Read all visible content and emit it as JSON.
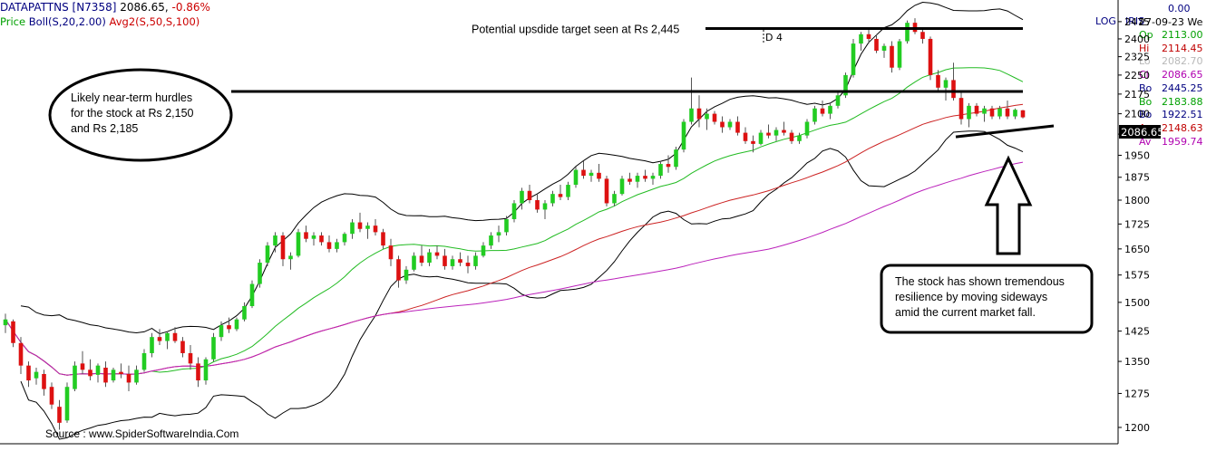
{
  "header": {
    "symbol": "DATAPATTNS [N7358]",
    "last": "2086.65,",
    "change": "-0.86%",
    "legend_price": "Price",
    "legend_boll": "Boll(S,20,2.00)",
    "legend_avg": "Avg2(S,50,S,100)",
    "log_label": "LOG",
    "iris_label": "IRIS"
  },
  "side_panel": {
    "top_value": "0.00",
    "date": "27-09-23 We",
    "rows": [
      {
        "key": "Op",
        "value": "2113.00",
        "color": "#00a000"
      },
      {
        "key": "Hi",
        "value": "2114.45",
        "color": "#c00000"
      },
      {
        "key": "Lo",
        "value": "2082.70",
        "color": "#b8b8b8"
      },
      {
        "key": "Cl",
        "value": "2086.65",
        "color": "#b000b0"
      },
      {
        "key": "Bo",
        "value": "2445.25",
        "color": "#000080"
      },
      {
        "key": "Bo",
        "value": "2183.88",
        "color": "#00a000"
      },
      {
        "key": "Bo",
        "value": "1922.51",
        "color": "#000080"
      },
      {
        "key": "Av",
        "value": "2148.63",
        "color": "#c00000"
      },
      {
        "key": "Av",
        "value": "1959.74",
        "color": "#b000b0"
      }
    ]
  },
  "price_tag": "2086.65",
  "source": "Source : www.SpiderSoftwareIndia.Com",
  "annotations": {
    "hurdle_lines": [
      "Likely near-term hurdles",
      "for the stock at Rs 2,150",
      "and Rs 2,185"
    ],
    "target_text": "Potential upsdide target seen at Rs 2,445",
    "resilience_lines": [
      "The stock has shown tremendous",
      "resilience by moving sideways",
      "amid the current market fall."
    ],
    "marker": "D 4"
  },
  "colors": {
    "up": "#22cc22",
    "down": "#dd1111",
    "bb_mid": "#22bb22",
    "avg50": "#cc2222",
    "avg100": "#bb22bb",
    "bb_band": "#000000"
  },
  "chart_data": {
    "type": "candlestick",
    "y_scale": "log",
    "ylim": [
      1175,
      2560
    ],
    "yticks": [
      1200,
      1275,
      1350,
      1425,
      1500,
      1575,
      1650,
      1725,
      1800,
      1875,
      1950,
      2025,
      2100,
      2175,
      2250,
      2325,
      2400,
      2475
    ],
    "reference_lines": [
      {
        "label": "hurdle",
        "value": 2185
      },
      {
        "label": "target",
        "value": 2445
      }
    ],
    "support_trendline": [
      2015,
      2055
    ],
    "candles": [
      [
        1440,
        1470,
        1420,
        1455
      ],
      [
        1450,
        1455,
        1385,
        1395
      ],
      [
        1395,
        1410,
        1320,
        1340
      ],
      [
        1340,
        1350,
        1290,
        1305
      ],
      [
        1310,
        1335,
        1295,
        1325
      ],
      [
        1320,
        1330,
        1270,
        1285
      ],
      [
        1290,
        1300,
        1240,
        1250
      ],
      [
        1245,
        1260,
        1195,
        1210
      ],
      [
        1215,
        1300,
        1210,
        1290
      ],
      [
        1285,
        1350,
        1280,
        1340
      ],
      [
        1345,
        1375,
        1320,
        1330
      ],
      [
        1330,
        1355,
        1305,
        1315
      ],
      [
        1318,
        1345,
        1300,
        1340
      ],
      [
        1335,
        1350,
        1290,
        1300
      ],
      [
        1305,
        1335,
        1300,
        1330
      ],
      [
        1325,
        1345,
        1310,
        1320
      ],
      [
        1320,
        1340,
        1280,
        1300
      ],
      [
        1300,
        1340,
        1295,
        1330
      ],
      [
        1330,
        1380,
        1325,
        1370
      ],
      [
        1370,
        1420,
        1360,
        1410
      ],
      [
        1410,
        1430,
        1390,
        1400
      ],
      [
        1400,
        1425,
        1380,
        1420
      ],
      [
        1420,
        1435,
        1395,
        1400
      ],
      [
        1400,
        1410,
        1360,
        1370
      ],
      [
        1370,
        1390,
        1330,
        1345
      ],
      [
        1345,
        1360,
        1290,
        1305
      ],
      [
        1305,
        1360,
        1295,
        1355
      ],
      [
        1355,
        1420,
        1350,
        1410
      ],
      [
        1410,
        1450,
        1400,
        1440
      ],
      [
        1440,
        1460,
        1420,
        1430
      ],
      [
        1430,
        1460,
        1425,
        1455
      ],
      [
        1455,
        1500,
        1450,
        1490
      ],
      [
        1490,
        1560,
        1485,
        1550
      ],
      [
        1550,
        1620,
        1540,
        1610
      ],
      [
        1610,
        1670,
        1600,
        1660
      ],
      [
        1660,
        1700,
        1640,
        1690
      ],
      [
        1690,
        1700,
        1600,
        1620
      ],
      [
        1620,
        1640,
        1590,
        1630
      ],
      [
        1630,
        1710,
        1625,
        1700
      ],
      [
        1700,
        1720,
        1670,
        1680
      ],
      [
        1680,
        1700,
        1660,
        1690
      ],
      [
        1690,
        1700,
        1660,
        1670
      ],
      [
        1670,
        1690,
        1640,
        1650
      ],
      [
        1650,
        1680,
        1640,
        1670
      ],
      [
        1670,
        1700,
        1660,
        1695
      ],
      [
        1695,
        1740,
        1680,
        1730
      ],
      [
        1730,
        1760,
        1700,
        1710
      ],
      [
        1710,
        1730,
        1680,
        1720
      ],
      [
        1720,
        1740,
        1690,
        1700
      ],
      [
        1700,
        1710,
        1650,
        1660
      ],
      [
        1660,
        1680,
        1600,
        1620
      ],
      [
        1620,
        1630,
        1540,
        1560
      ],
      [
        1560,
        1600,
        1550,
        1590
      ],
      [
        1590,
        1640,
        1585,
        1630
      ],
      [
        1630,
        1660,
        1600,
        1610
      ],
      [
        1610,
        1650,
        1600,
        1640
      ],
      [
        1640,
        1660,
        1620,
        1630
      ],
      [
        1630,
        1650,
        1590,
        1600
      ],
      [
        1600,
        1630,
        1590,
        1620
      ],
      [
        1620,
        1640,
        1600,
        1610
      ],
      [
        1610,
        1630,
        1580,
        1600
      ],
      [
        1600,
        1640,
        1590,
        1630
      ],
      [
        1630,
        1670,
        1625,
        1660
      ],
      [
        1660,
        1700,
        1650,
        1690
      ],
      [
        1690,
        1720,
        1670,
        1700
      ],
      [
        1700,
        1750,
        1690,
        1740
      ],
      [
        1740,
        1800,
        1730,
        1790
      ],
      [
        1790,
        1840,
        1770,
        1830
      ],
      [
        1830,
        1850,
        1790,
        1800
      ],
      [
        1800,
        1820,
        1760,
        1770
      ],
      [
        1770,
        1800,
        1740,
        1790
      ],
      [
        1790,
        1830,
        1780,
        1820
      ],
      [
        1820,
        1850,
        1800,
        1810
      ],
      [
        1810,
        1860,
        1800,
        1850
      ],
      [
        1850,
        1910,
        1840,
        1900
      ],
      [
        1900,
        1930,
        1870,
        1880
      ],
      [
        1880,
        1900,
        1860,
        1890
      ],
      [
        1890,
        1920,
        1860,
        1870
      ],
      [
        1870,
        1880,
        1780,
        1790
      ],
      [
        1790,
        1830,
        1780,
        1820
      ],
      [
        1820,
        1880,
        1815,
        1870
      ],
      [
        1870,
        1890,
        1850,
        1860
      ],
      [
        1860,
        1890,
        1840,
        1880
      ],
      [
        1880,
        1900,
        1860,
        1870
      ],
      [
        1870,
        1890,
        1850,
        1880
      ],
      [
        1880,
        1930,
        1870,
        1920
      ],
      [
        1920,
        1950,
        1890,
        1910
      ],
      [
        1910,
        1980,
        1900,
        1970
      ],
      [
        1970,
        2080,
        1960,
        2070
      ],
      [
        2070,
        2240,
        2060,
        2120
      ],
      [
        2120,
        2170,
        2050,
        2080
      ],
      [
        2080,
        2120,
        2040,
        2100
      ],
      [
        2100,
        2110,
        2060,
        2070
      ],
      [
        2070,
        2090,
        2030,
        2050
      ],
      [
        2050,
        2080,
        2040,
        2070
      ],
      [
        2070,
        2090,
        2020,
        2030
      ],
      [
        2030,
        2050,
        1990,
        2000
      ],
      [
        2000,
        2020,
        1960,
        1990
      ],
      [
        1990,
        2040,
        1985,
        2030
      ],
      [
        2030,
        2060,
        2010,
        2020
      ],
      [
        2020,
        2050,
        2000,
        2040
      ],
      [
        2040,
        2070,
        2020,
        2030
      ],
      [
        2030,
        2040,
        1990,
        2000
      ],
      [
        2000,
        2030,
        1990,
        2020
      ],
      [
        2020,
        2080,
        2010,
        2070
      ],
      [
        2070,
        2130,
        2060,
        2120
      ],
      [
        2120,
        2150,
        2090,
        2100
      ],
      [
        2100,
        2140,
        2080,
        2130
      ],
      [
        2130,
        2180,
        2120,
        2170
      ],
      [
        2170,
        2260,
        2160,
        2250
      ],
      [
        2250,
        2400,
        2240,
        2380
      ],
      [
        2380,
        2430,
        2350,
        2420
      ],
      [
        2420,
        2440,
        2380,
        2400
      ],
      [
        2400,
        2420,
        2340,
        2350
      ],
      [
        2350,
        2380,
        2320,
        2370
      ],
      [
        2370,
        2390,
        2260,
        2280
      ],
      [
        2280,
        2400,
        2270,
        2390
      ],
      [
        2390,
        2480,
        2380,
        2470
      ],
      [
        2470,
        2490,
        2420,
        2430
      ],
      [
        2430,
        2450,
        2380,
        2400
      ],
      [
        2400,
        2410,
        2230,
        2250
      ],
      [
        2250,
        2270,
        2180,
        2200
      ],
      [
        2200,
        2240,
        2150,
        2230
      ],
      [
        2230,
        2300,
        2150,
        2160
      ],
      [
        2160,
        2190,
        2060,
        2080
      ],
      [
        2080,
        2140,
        2050,
        2130
      ],
      [
        2130,
        2140,
        2090,
        2100
      ],
      [
        2100,
        2130,
        2070,
        2120
      ],
      [
        2120,
        2130,
        2080,
        2090
      ],
      [
        2090,
        2130,
        2080,
        2120
      ],
      [
        2120,
        2150,
        2080,
        2090
      ],
      [
        2090,
        2120,
        2080,
        2115
      ],
      [
        2113,
        2114.45,
        2082.7,
        2086.65
      ]
    ]
  }
}
